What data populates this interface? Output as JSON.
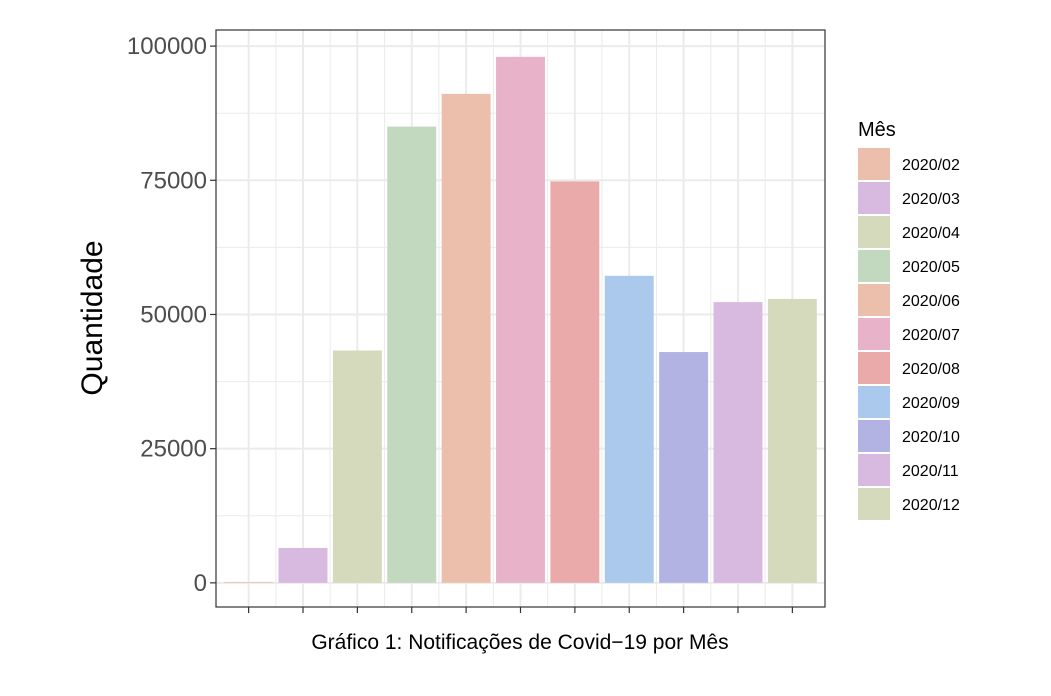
{
  "chart_data": {
    "type": "bar",
    "categories": [
      "2020/02",
      "2020/03",
      "2020/04",
      "2020/05",
      "2020/06",
      "2020/07",
      "2020/08",
      "2020/09",
      "2020/10",
      "2020/11",
      "2020/12"
    ],
    "values": [
      150,
      6500,
      43300,
      85000,
      91100,
      98000,
      74800,
      57200,
      43000,
      52300,
      52900
    ],
    "colors": [
      "#EBBFAB",
      "#D8B9DF",
      "#D6DABD",
      "#C2D9BF",
      "#EBBFAB",
      "#E8B3C8",
      "#EBAAAA",
      "#ABC9EC",
      "#B3B3E3",
      "#D8B9DF",
      "#D6DABD"
    ],
    "ylabel": "Quantidade",
    "xlabel": "Gráfico 1: Notificações de Covid−19 por Mês",
    "ylim": [
      -4500,
      103000
    ],
    "yticks": [
      0,
      25000,
      50000,
      75000,
      100000
    ],
    "ytick_labels": [
      "0",
      "25000",
      "50000",
      "75000",
      "100000"
    ],
    "legend_title": "Mês",
    "legend_placement": "right",
    "grid": true,
    "theme_colors": {
      "grid": "#ebebeb",
      "border": "#333333",
      "tick_text": "#4d4d4d"
    }
  }
}
